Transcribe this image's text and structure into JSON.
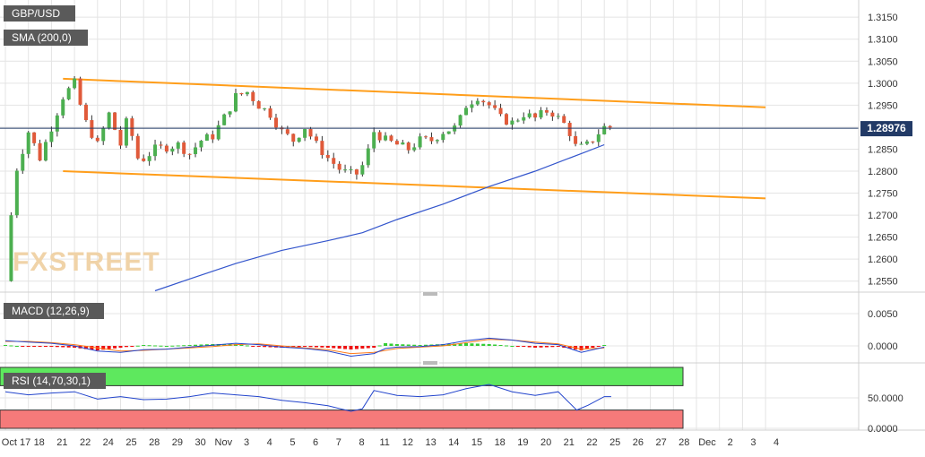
{
  "chart_data": {
    "type": "candlestick",
    "symbol": "GBP/USD",
    "indicators": {
      "sma_label": "SMA (200,0)",
      "macd_label": "MACD (12,26,9)",
      "rsi_label": "RSI (14,70,30,1)"
    },
    "current_price_label": "1.28976",
    "current_price": 1.28976,
    "watermark": "FXSTREET",
    "price_axis": {
      "ticks": [
        "1.3150",
        "1.3100",
        "1.3050",
        "1.3000",
        "1.2950",
        "1.2900",
        "1.2850",
        "1.2800",
        "1.2750",
        "1.2700",
        "1.2650",
        "1.2600",
        "1.2550"
      ],
      "range": [
        1.2525,
        1.3185
      ]
    },
    "macd_axis": {
      "ticks": [
        "0.0050",
        "0.0000"
      ],
      "range": [
        -0.0025,
        0.0075
      ]
    },
    "rsi_axis": {
      "ticks": [
        "50.0000",
        "0.0000"
      ],
      "range": [
        0,
        100
      ],
      "overbought": 70,
      "oversold": 30
    },
    "x_axis": {
      "labels": [
        "Oct 17",
        "18",
        "21",
        "22",
        "24",
        "25",
        "28",
        "29",
        "30",
        "Nov",
        "3",
        "4",
        "5",
        "6",
        "7",
        "8",
        "11",
        "12",
        "13",
        "14",
        "15",
        "18",
        "19",
        "20",
        "21",
        "22",
        "25",
        "26",
        "27",
        "28",
        "Dec",
        "2",
        "3",
        "4"
      ]
    },
    "close_path": [
      [
        0,
        1.255
      ],
      [
        0.4,
        1.279
      ],
      [
        1,
        1.289
      ],
      [
        1.5,
        1.283
      ],
      [
        2,
        1.29
      ],
      [
        2.5,
        1.297
      ],
      [
        3,
        1.3
      ],
      [
        3.4,
        1.292
      ],
      [
        4,
        1.286
      ],
      [
        4.5,
        1.293
      ],
      [
        5,
        1.286
      ],
      [
        5.3,
        1.292
      ],
      [
        5.8,
        1.282
      ],
      [
        6.5,
        1.285
      ],
      [
        7.5,
        1.286
      ],
      [
        8,
        1.284
      ],
      [
        8.5,
        1.287
      ],
      [
        9,
        1.288
      ],
      [
        9.6,
        1.293
      ],
      [
        10,
        1.297
      ],
      [
        10.5,
        1.298
      ],
      [
        11,
        1.295
      ],
      [
        11.5,
        1.293
      ],
      [
        12,
        1.289
      ],
      [
        12.5,
        1.287
      ],
      [
        13,
        1.29
      ],
      [
        13.5,
        1.286
      ],
      [
        14,
        1.283
      ],
      [
        14.6,
        1.28
      ],
      [
        15.2,
        1.279
      ],
      [
        15.6,
        1.282
      ],
      [
        16,
        1.289
      ],
      [
        16.5,
        1.287
      ],
      [
        17,
        1.286
      ],
      [
        17.5,
        1.285
      ],
      [
        18,
        1.287
      ],
      [
        18.5,
        1.287
      ],
      [
        19,
        1.289
      ],
      [
        19.6,
        1.29
      ],
      [
        20,
        1.295
      ],
      [
        20.5,
        1.297
      ],
      [
        21,
        1.295
      ],
      [
        21.5,
        1.292
      ],
      [
        22,
        1.291
      ],
      [
        22.5,
        1.293
      ],
      [
        23,
        1.292
      ],
      [
        23.6,
        1.294
      ],
      [
        24,
        1.292
      ],
      [
        24.4,
        1.29
      ],
      [
        24.8,
        1.285
      ],
      [
        25.3,
        1.286
      ],
      [
        25.8,
        1.289
      ],
      [
        26,
        1.29
      ],
      [
        26.3,
        1.29
      ]
    ],
    "sma_200": [
      [
        6.5,
        1.2528
      ],
      [
        8,
        1.2555
      ],
      [
        10,
        1.259
      ],
      [
        12,
        1.262
      ],
      [
        14,
        1.2642
      ],
      [
        15.5,
        1.266
      ],
      [
        17,
        1.269
      ],
      [
        19,
        1.2725
      ],
      [
        21,
        1.2765
      ],
      [
        23,
        1.28
      ],
      [
        25,
        1.284
      ],
      [
        26,
        1.286
      ]
    ],
    "channel_upper": [
      [
        2.5,
        1.301
      ],
      [
        33,
        1.2945
      ]
    ],
    "channel_lower": [
      [
        2.5,
        1.28
      ],
      [
        33,
        1.2738
      ]
    ],
    "macd_line": [
      [
        0,
        0.0008
      ],
      [
        1,
        0.0006
      ],
      [
        2,
        0.0004
      ],
      [
        3,
        0.0
      ],
      [
        4,
        -0.0008
      ],
      [
        5,
        -0.001
      ],
      [
        6,
        -0.0006
      ],
      [
        7,
        -0.0005
      ],
      [
        8,
        -0.0002
      ],
      [
        9,
        0.0001
      ],
      [
        10,
        0.0004
      ],
      [
        11,
        0.0002
      ],
      [
        12,
        -0.0002
      ],
      [
        13,
        -0.0004
      ],
      [
        14,
        -0.0008
      ],
      [
        15,
        -0.0016
      ],
      [
        16,
        -0.0012
      ],
      [
        16.5,
        -0.0004
      ],
      [
        17,
        -0.0002
      ],
      [
        18,
        -0.0001
      ],
      [
        19,
        0.0002
      ],
      [
        20,
        0.0008
      ],
      [
        21,
        0.0012
      ],
      [
        22,
        0.0009
      ],
      [
        23,
        0.0004
      ],
      [
        24,
        0.0002
      ],
      [
        25,
        -0.001
      ],
      [
        26,
        -0.0002
      ]
    ],
    "macd_signal": [
      [
        0,
        0.0007
      ],
      [
        1,
        0.0007
      ],
      [
        2,
        0.0005
      ],
      [
        3,
        0.0002
      ],
      [
        4,
        -0.0003
      ],
      [
        5,
        -0.0008
      ],
      [
        6,
        -0.0007
      ],
      [
        7,
        -0.0005
      ],
      [
        8,
        -0.0003
      ],
      [
        9,
        -0.0001
      ],
      [
        10,
        0.0002
      ],
      [
        11,
        0.0003
      ],
      [
        12,
        0.0
      ],
      [
        13,
        -0.0003
      ],
      [
        14,
        -0.0006
      ],
      [
        15,
        -0.0012
      ],
      [
        16,
        -0.001
      ],
      [
        17,
        -0.0004
      ],
      [
        18,
        -0.0002
      ],
      [
        19,
        0.0
      ],
      [
        20,
        0.0005
      ],
      [
        21,
        0.001
      ],
      [
        22,
        0.0009
      ],
      [
        23,
        0.0006
      ],
      [
        24,
        0.0003
      ],
      [
        25,
        -0.0005
      ],
      [
        26,
        -0.0003
      ]
    ],
    "rsi_line": [
      [
        0,
        60
      ],
      [
        1,
        55
      ],
      [
        2,
        58
      ],
      [
        3,
        60
      ],
      [
        4,
        48
      ],
      [
        5,
        52
      ],
      [
        6,
        47
      ],
      [
        7,
        48
      ],
      [
        8,
        52
      ],
      [
        9,
        58
      ],
      [
        10,
        55
      ],
      [
        11,
        52
      ],
      [
        12,
        46
      ],
      [
        13,
        42
      ],
      [
        14,
        37
      ],
      [
        15,
        28
      ],
      [
        15.5,
        32
      ],
      [
        16,
        62
      ],
      [
        17,
        54
      ],
      [
        18,
        52
      ],
      [
        19,
        55
      ],
      [
        20,
        65
      ],
      [
        21,
        72
      ],
      [
        22,
        60
      ],
      [
        23,
        54
      ],
      [
        24,
        60
      ],
      [
        24.8,
        30
      ],
      [
        25.3,
        38
      ],
      [
        26,
        52
      ],
      [
        26.3,
        52
      ]
    ],
    "colors": {
      "up": "#4caf50",
      "down": "#e05a3a",
      "sma": "#3355cc",
      "channel": "#ff9e1b",
      "price_line": "#223a66",
      "macd": "#2244cc",
      "signal": "#ff7a1a",
      "hist_pos": "#33cc33",
      "hist_neg": "#ee1111",
      "rsi": "#2244cc",
      "overbought_zone": "#5ee85e",
      "oversold_zone": "#f57a7a"
    }
  }
}
